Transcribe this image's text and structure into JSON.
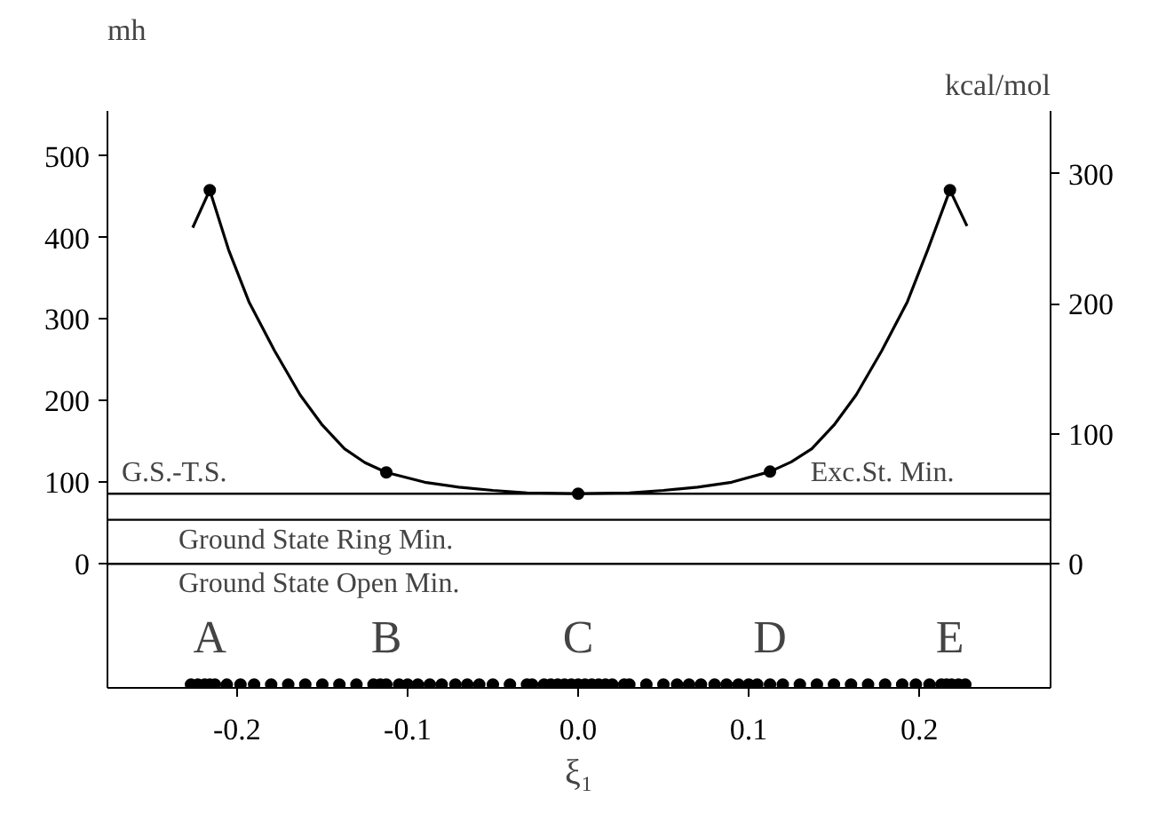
{
  "chart_data": {
    "type": "line",
    "xlabel": "ξ₁",
    "ylabel": "mh",
    "y2label": "kcal/mol",
    "xlim": [
      -0.276,
      0.277
    ],
    "ylim": [
      -152,
      555
    ],
    "y2lim": [
      -95.4,
      348.3
    ],
    "xticks": [
      {
        "value": -0.2,
        "label": "-0.2"
      },
      {
        "value": -0.1,
        "label": "-0.1"
      },
      {
        "value": 0,
        "label": "0.0"
      },
      {
        "value": 0.1,
        "label": "0.1"
      },
      {
        "value": 0.2,
        "label": "0.2"
      }
    ],
    "yticks": [
      0,
      100,
      200,
      300,
      400,
      500
    ],
    "y2ticks": [
      0,
      100,
      200,
      300
    ],
    "grid": false,
    "series": [
      {
        "color": "#000000",
        "marker": "none",
        "x": [
          -0.226,
          -0.216,
          -0.205,
          -0.193,
          -0.178,
          -0.163,
          -0.15,
          -0.137,
          -0.125,
          -0.1125,
          -0.09,
          -0.07,
          -0.05,
          -0.03,
          0,
          0.03,
          0.05,
          0.07,
          0.09,
          0.1125,
          0.125,
          0.137,
          0.15,
          0.163,
          0.178,
          0.193,
          0.205,
          0.218,
          0.228
        ],
        "values": [
          412,
          458,
          385,
          321,
          261,
          207,
          170,
          141,
          124,
          112,
          100,
          94,
          90,
          87,
          86,
          87,
          90,
          94,
          100,
          113,
          125,
          141,
          170,
          207,
          261,
          321,
          385,
          458,
          414
        ]
      },
      {
        "type": "scatter",
        "color": "#000000",
        "marker": "circle",
        "x": [
          -0.216,
          -0.1125,
          0,
          0.1125,
          0.218
        ],
        "values": [
          458,
          112,
          86,
          113,
          458
        ]
      },
      {
        "type": "scatter",
        "color": "#000000",
        "marker": "circle",
        "x": [
          -0.227,
          -0.223,
          -0.219,
          -0.216,
          -0.213,
          -0.206,
          -0.198,
          -0.19,
          -0.18,
          -0.17,
          -0.16,
          -0.15,
          -0.14,
          -0.13,
          -0.12,
          -0.116,
          -0.1125,
          -0.105,
          -0.1,
          -0.094,
          -0.087,
          -0.08,
          -0.072,
          -0.065,
          -0.058,
          -0.05,
          -0.04,
          -0.03,
          -0.027,
          -0.02,
          -0.016,
          -0.012,
          -0.008,
          -0.004,
          0,
          0.004,
          0.008,
          0.012,
          0.016,
          0.02,
          0.027,
          0.03,
          0.04,
          0.05,
          0.058,
          0.065,
          0.072,
          0.08,
          0.087,
          0.094,
          0.1,
          0.105,
          0.1125,
          0.12,
          0.13,
          0.14,
          0.15,
          0.16,
          0.17,
          0.18,
          0.19,
          0.198,
          0.206,
          0.213,
          0.216,
          0.219,
          0.223,
          0.227
        ],
        "values": [
          -148,
          -148,
          -148,
          -148,
          -148,
          -148,
          -148,
          -148,
          -148,
          -148,
          -148,
          -148,
          -148,
          -148,
          -148,
          -148,
          -148,
          -148,
          -148,
          -148,
          -148,
          -148,
          -148,
          -148,
          -148,
          -148,
          -148,
          -148,
          -148,
          -148,
          -148,
          -148,
          -148,
          -148,
          -148,
          -148,
          -148,
          -148,
          -148,
          -148,
          -148,
          -148,
          -148,
          -148,
          -148,
          -148,
          -148,
          -148,
          -148,
          -148,
          -148,
          -148,
          -148,
          -148,
          -148,
          -148,
          -148,
          -148,
          -148,
          -148,
          -148,
          -148,
          -148,
          -148,
          -148,
          -148,
          -148,
          -148
        ]
      }
    ],
    "ref_lines": [
      {
        "axis": "y",
        "value": 86,
        "label": "G.S.-T.S.",
        "color": "#000000"
      },
      {
        "axis": "y",
        "value": 54,
        "label": "Ground State Ring Min.",
        "color": "#000000"
      },
      {
        "axis": "y",
        "value": 0,
        "label": "Ground State Open Min.",
        "color": "#000000"
      }
    ],
    "annotations": [
      {
        "text": "Exc.St. Min.",
        "x": 0.13,
        "y": 86
      },
      "A",
      "B",
      "C",
      "D",
      "E"
    ]
  }
}
